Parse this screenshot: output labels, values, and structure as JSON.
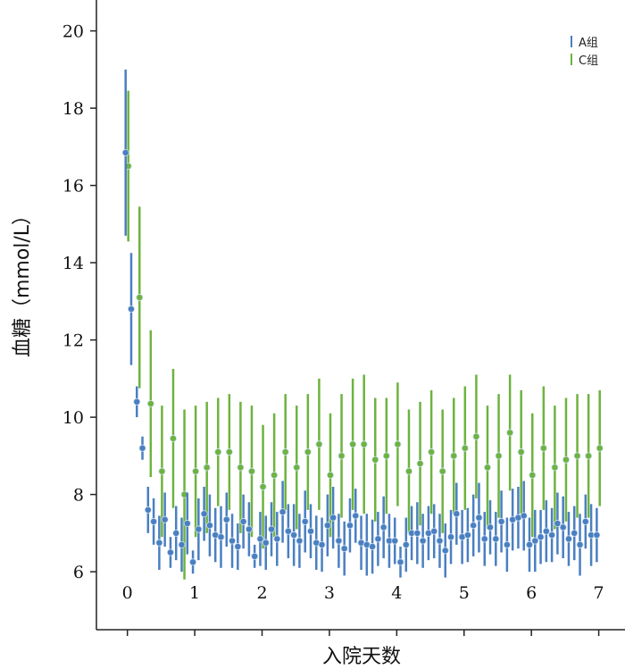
{
  "chart_data": {
    "type": "scatter",
    "title": "",
    "xlabel": "入院天数",
    "ylabel": "血糖（mmol/L）",
    "xlim": [
      -0.46,
      7.39
    ],
    "ylim": [
      4.5,
      20.8
    ],
    "xticks": [
      0,
      1,
      2,
      3,
      4,
      5,
      6,
      7
    ],
    "yticks": [
      6,
      8,
      10,
      12,
      14,
      16,
      18,
      20
    ],
    "grid": false,
    "legend_position": "top-right",
    "series": [
      {
        "name": "A组",
        "color": "#4a7fc1",
        "x_step": 0.0833,
        "values": [
          16.85,
          12.8,
          10.4,
          9.2,
          7.6,
          7.3,
          6.75,
          7.35,
          6.5,
          7.0,
          6.7,
          7.25,
          6.25,
          7.1,
          7.5,
          7.2,
          6.95,
          6.9,
          7.35,
          6.8,
          6.65,
          7.3,
          7.1,
          6.4,
          6.85,
          6.75,
          7.1,
          6.85,
          7.55,
          7.05,
          6.95,
          6.8,
          7.3,
          7.05,
          6.75,
          6.7,
          7.2,
          7.4,
          6.8,
          6.6,
          7.2,
          7.45,
          6.75,
          6.7,
          6.65,
          6.85,
          7.15,
          6.8,
          6.8,
          6.25,
          6.7,
          7.0,
          7.0,
          6.8,
          7.0,
          7.05,
          6.8,
          6.55,
          6.9,
          7.5,
          6.9,
          6.95,
          7.2,
          7.4,
          6.85,
          7.15,
          6.85,
          7.3,
          6.7,
          7.35,
          7.4,
          7.45,
          6.7,
          6.8,
          6.9,
          7.05,
          6.95,
          7.25,
          7.15,
          6.85,
          7.0,
          6.7,
          7.3,
          6.95,
          6.95
        ],
        "errors": [
          2.15,
          1.45,
          0.4,
          0.3,
          0.6,
          0.6,
          0.7,
          0.7,
          0.4,
          0.7,
          0.7,
          0.8,
          0.3,
          0.8,
          0.7,
          0.8,
          0.7,
          0.8,
          0.7,
          0.7,
          0.6,
          0.7,
          0.7,
          0.3,
          0.7,
          0.7,
          0.7,
          0.7,
          0.8,
          0.7,
          0.8,
          0.7,
          0.8,
          0.7,
          0.7,
          0.7,
          0.8,
          0.8,
          0.7,
          0.7,
          0.7,
          0.7,
          0.7,
          0.8,
          0.7,
          0.7,
          0.8,
          0.7,
          0.6,
          0.4,
          0.7,
          0.7,
          0.8,
          0.7,
          0.7,
          0.7,
          0.7,
          0.7,
          0.7,
          0.8,
          0.7,
          0.7,
          0.8,
          0.9,
          0.7,
          0.7,
          0.7,
          0.8,
          0.7,
          0.8,
          0.8,
          0.9,
          0.7,
          0.8,
          0.7,
          0.8,
          0.7,
          0.8,
          0.8,
          0.7,
          0.7,
          0.8,
          0.7,
          0.8,
          0.7
        ]
      },
      {
        "name": "C组",
        "color": "#6db33f",
        "x_step": 0.1667,
        "values": [
          16.5,
          13.1,
          10.35,
          8.6,
          9.45,
          8.0,
          8.6,
          8.7,
          9.1,
          9.1,
          8.7,
          8.6,
          8.2,
          8.5,
          9.1,
          8.7,
          9.1,
          9.3,
          8.5,
          9.0,
          9.3,
          9.3,
          8.9,
          9.0,
          9.3,
          8.6,
          8.8,
          9.1,
          8.6,
          9.0,
          9.2,
          9.5,
          8.7,
          9.0,
          9.6,
          9.1,
          8.5,
          9.2,
          8.7,
          8.9,
          9.0,
          9.0,
          9.2
        ],
        "errors": [
          1.95,
          2.35,
          1.9,
          1.7,
          1.8,
          2.2,
          1.7,
          1.7,
          1.4,
          1.5,
          1.7,
          1.7,
          1.6,
          1.6,
          1.5,
          1.6,
          1.5,
          1.7,
          1.6,
          1.6,
          1.7,
          1.8,
          1.6,
          1.5,
          1.6,
          1.6,
          1.6,
          1.6,
          1.6,
          1.5,
          1.6,
          1.6,
          1.6,
          1.6,
          1.5,
          1.6,
          1.6,
          1.6,
          1.6,
          1.6,
          1.6,
          1.6,
          1.5
        ]
      }
    ]
  }
}
